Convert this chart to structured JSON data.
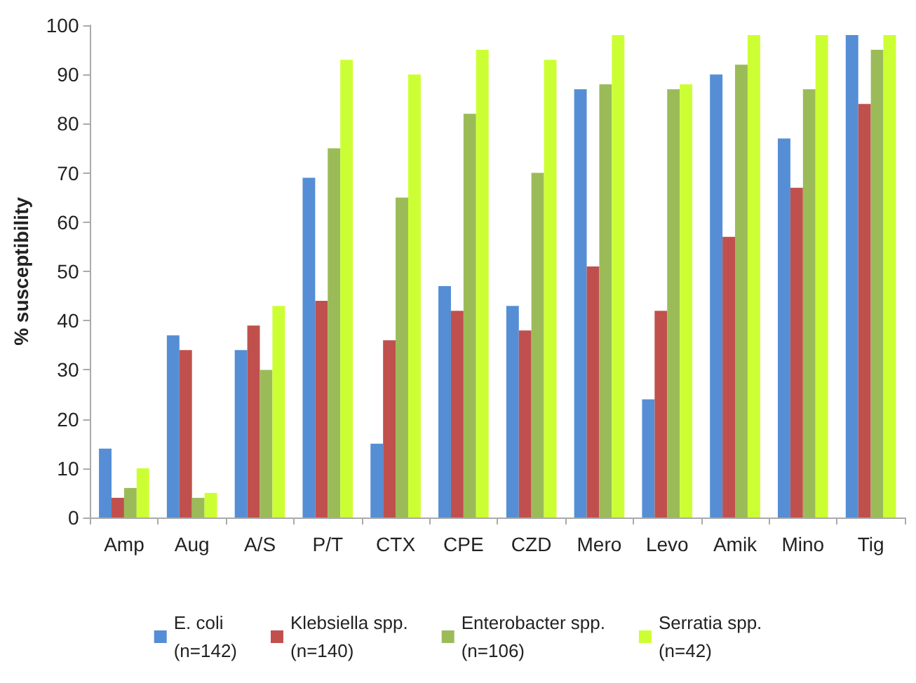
{
  "chart_data": {
    "type": "bar",
    "ylabel": "% susceptibility",
    "categories": [
      "Amp",
      "Aug",
      "A/S",
      "P/T",
      "CTX",
      "CPE",
      "CZD",
      "Mero",
      "Levo",
      "Amik",
      "Mino",
      "Tig"
    ],
    "series": [
      {
        "name": "E. coli\n(n=142)",
        "color": "#558ed5",
        "values": [
          14,
          37,
          34,
          69,
          15,
          47,
          43,
          87,
          24,
          90,
          77,
          98
        ]
      },
      {
        "name": "Klebsiella spp.\n(n=140)",
        "color": "#c0504d",
        "values": [
          4,
          34,
          39,
          44,
          36,
          42,
          38,
          51,
          42,
          57,
          67,
          84
        ]
      },
      {
        "name": "Enterobacter spp.\n(n=106)",
        "color": "#9bbb59",
        "values": [
          6,
          4,
          30,
          75,
          65,
          82,
          70,
          88,
          87,
          92,
          87,
          95
        ]
      },
      {
        "name": "Serratia spp.\n(n=42)",
        "color": "#ccff33",
        "values": [
          10,
          5,
          43,
          93,
          90,
          95,
          93,
          98,
          88,
          98,
          98,
          98
        ]
      }
    ],
    "ylim": [
      0,
      100
    ],
    "yticks": [
      0,
      10,
      20,
      30,
      40,
      50,
      60,
      70,
      80,
      90,
      100
    ],
    "grid": false,
    "legend": "bottom"
  }
}
